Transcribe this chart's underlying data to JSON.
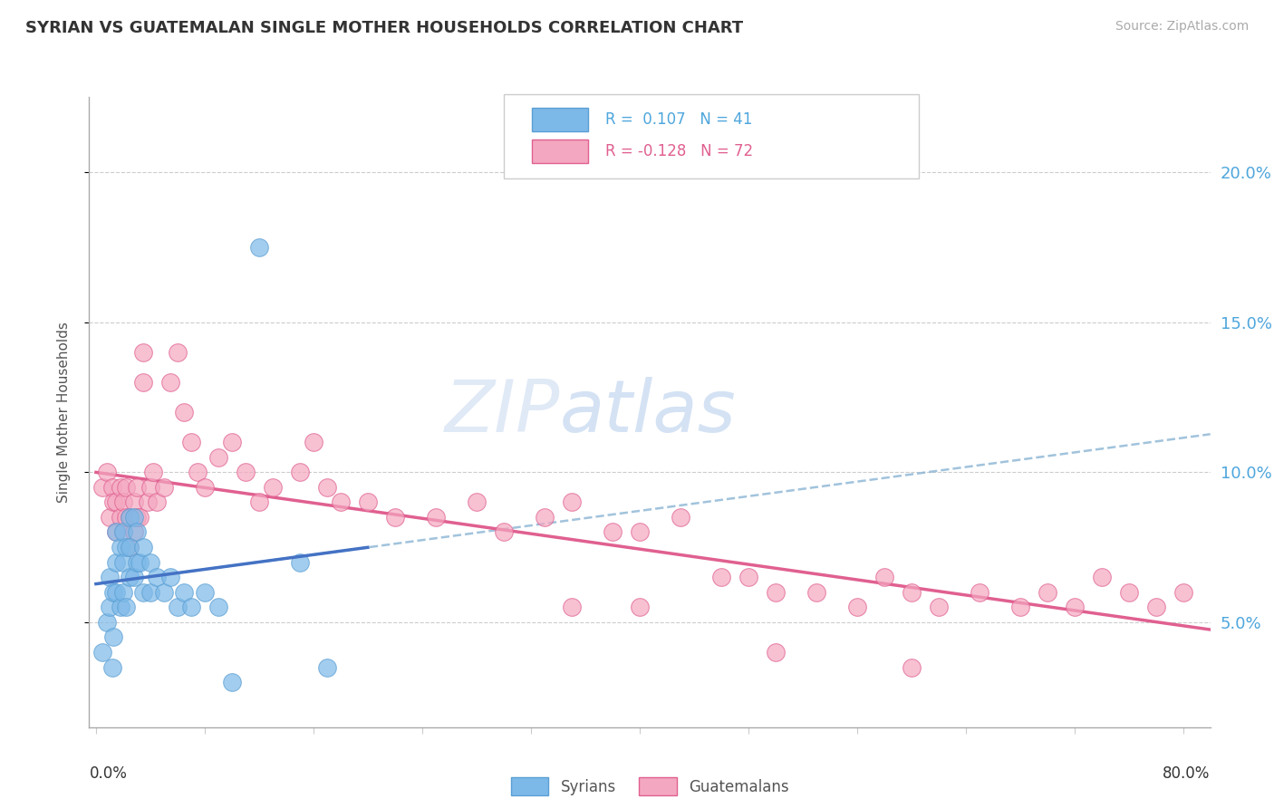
{
  "title": "SYRIAN VS GUATEMALAN SINGLE MOTHER HOUSEHOLDS CORRELATION CHART",
  "source": "Source: ZipAtlas.com",
  "ylabel": "Single Mother Households",
  "ytick_labels": [
    "5.0%",
    "10.0%",
    "15.0%",
    "20.0%"
  ],
  "ytick_values": [
    0.05,
    0.1,
    0.15,
    0.2
  ],
  "ylim": [
    0.015,
    0.225
  ],
  "xlim": [
    -0.005,
    0.82
  ],
  "legend_r1_color": "#4ea6dc",
  "legend_r2_color": "#e06090",
  "syrian_color": "#7db9e8",
  "syrian_edge": "#5a9fd4",
  "guatemalan_color": "#f4a7c0",
  "guatemalan_edge": "#e06090",
  "trend_syrian_color": "#5a9fd4",
  "trend_guatemalan_color": "#e06090",
  "syrian_x": [
    0.005,
    0.008,
    0.01,
    0.01,
    0.012,
    0.013,
    0.013,
    0.015,
    0.015,
    0.015,
    0.018,
    0.018,
    0.02,
    0.02,
    0.02,
    0.022,
    0.022,
    0.025,
    0.025,
    0.025,
    0.028,
    0.028,
    0.03,
    0.03,
    0.032,
    0.035,
    0.035,
    0.04,
    0.04,
    0.045,
    0.05,
    0.055,
    0.06,
    0.065,
    0.07,
    0.08,
    0.09,
    0.1,
    0.12,
    0.15,
    0.17
  ],
  "syrian_y": [
    0.04,
    0.05,
    0.055,
    0.065,
    0.035,
    0.045,
    0.06,
    0.06,
    0.07,
    0.08,
    0.055,
    0.075,
    0.06,
    0.07,
    0.08,
    0.055,
    0.075,
    0.065,
    0.075,
    0.085,
    0.065,
    0.085,
    0.07,
    0.08,
    0.07,
    0.06,
    0.075,
    0.06,
    0.07,
    0.065,
    0.06,
    0.065,
    0.055,
    0.06,
    0.055,
    0.06,
    0.055,
    0.03,
    0.175,
    0.07,
    0.035
  ],
  "guatemalan_x": [
    0.005,
    0.008,
    0.01,
    0.012,
    0.013,
    0.015,
    0.015,
    0.018,
    0.018,
    0.02,
    0.02,
    0.022,
    0.022,
    0.025,
    0.025,
    0.028,
    0.028,
    0.03,
    0.03,
    0.032,
    0.035,
    0.035,
    0.038,
    0.04,
    0.042,
    0.045,
    0.05,
    0.055,
    0.06,
    0.065,
    0.07,
    0.075,
    0.08,
    0.09,
    0.1,
    0.11,
    0.12,
    0.13,
    0.15,
    0.16,
    0.17,
    0.18,
    0.2,
    0.22,
    0.25,
    0.28,
    0.3,
    0.33,
    0.35,
    0.38,
    0.4,
    0.43,
    0.46,
    0.48,
    0.5,
    0.53,
    0.56,
    0.58,
    0.6,
    0.62,
    0.65,
    0.68,
    0.7,
    0.72,
    0.74,
    0.76,
    0.78,
    0.8,
    0.35,
    0.4,
    0.5,
    0.6
  ],
  "guatemalan_y": [
    0.095,
    0.1,
    0.085,
    0.095,
    0.09,
    0.08,
    0.09,
    0.085,
    0.095,
    0.08,
    0.09,
    0.085,
    0.095,
    0.075,
    0.085,
    0.08,
    0.09,
    0.085,
    0.095,
    0.085,
    0.13,
    0.14,
    0.09,
    0.095,
    0.1,
    0.09,
    0.095,
    0.13,
    0.14,
    0.12,
    0.11,
    0.1,
    0.095,
    0.105,
    0.11,
    0.1,
    0.09,
    0.095,
    0.1,
    0.11,
    0.095,
    0.09,
    0.09,
    0.085,
    0.085,
    0.09,
    0.08,
    0.085,
    0.09,
    0.08,
    0.08,
    0.085,
    0.065,
    0.065,
    0.06,
    0.06,
    0.055,
    0.065,
    0.06,
    0.055,
    0.06,
    0.055,
    0.06,
    0.055,
    0.065,
    0.06,
    0.055,
    0.06,
    0.055,
    0.055,
    0.04,
    0.035
  ]
}
